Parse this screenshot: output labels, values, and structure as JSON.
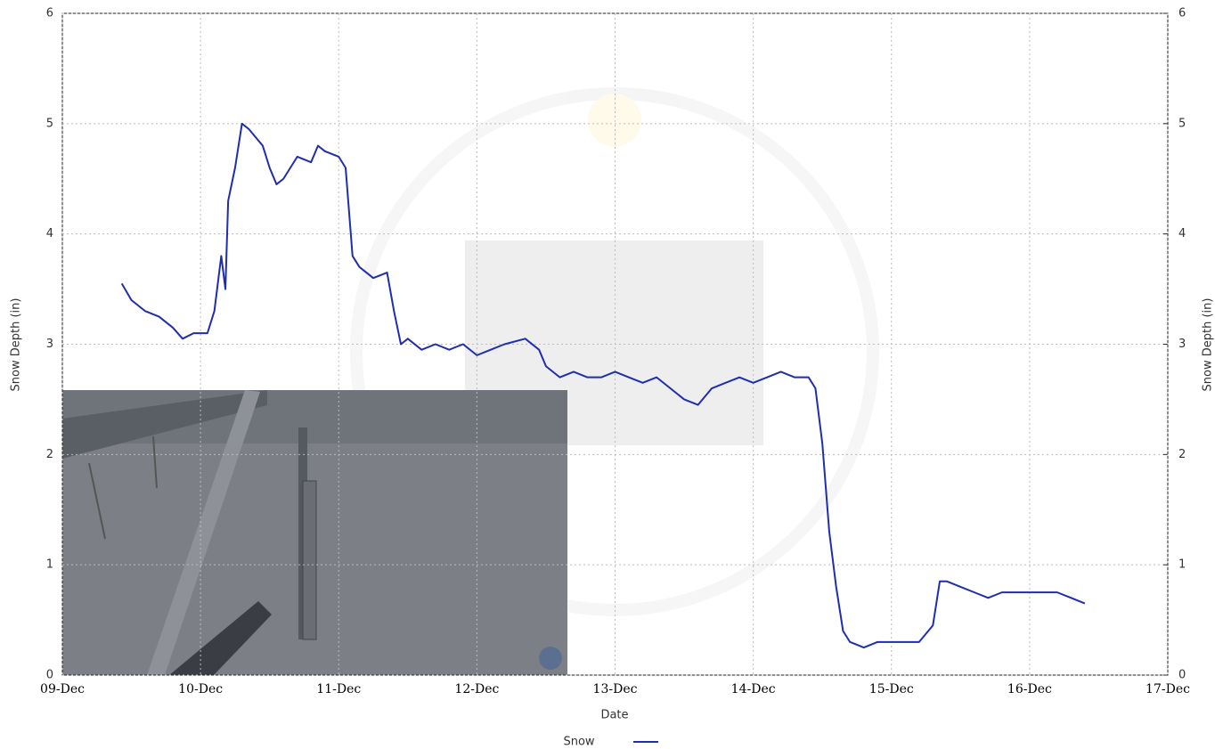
{
  "chart_data": {
    "type": "line",
    "xlabel": "Date",
    "ylabel": "Snow Depth (in)",
    "y2label": "Snow Depth (in)",
    "xlim": [
      9,
      17
    ],
    "xticks": [
      {
        "value": 9,
        "label": "09-Dec"
      },
      {
        "value": 10,
        "label": "10-Dec"
      },
      {
        "value": 11,
        "label": "11-Dec"
      },
      {
        "value": 12,
        "label": "12-Dec"
      },
      {
        "value": 13,
        "label": "13-Dec"
      },
      {
        "value": 14,
        "label": "14-Dec"
      },
      {
        "value": 15,
        "label": "15-Dec"
      },
      {
        "value": 16,
        "label": "16-Dec"
      },
      {
        "value": 17,
        "label": "17-Dec"
      }
    ],
    "ylim": [
      0,
      6
    ],
    "yticks": [
      0,
      1,
      2,
      3,
      4,
      5,
      6
    ],
    "y2lim": [
      0,
      6
    ],
    "y2ticks": [
      0,
      1,
      2,
      3,
      4,
      5,
      6
    ],
    "grid": true,
    "legend": "bottom",
    "x": [
      9.43,
      9.5,
      9.6,
      9.7,
      9.8,
      9.87,
      9.95,
      10.05,
      10.1,
      10.15,
      10.18,
      10.2,
      10.25,
      10.3,
      10.35,
      10.45,
      10.5,
      10.55,
      10.6,
      10.65,
      10.7,
      10.8,
      10.85,
      10.9,
      11.0,
      11.05,
      11.1,
      11.15,
      11.25,
      11.35,
      11.4,
      11.45,
      11.5,
      11.6,
      11.7,
      11.8,
      11.9,
      12.0,
      12.1,
      12.2,
      12.35,
      12.45,
      12.5,
      12.6,
      12.7,
      12.8,
      12.9,
      13.0,
      13.1,
      13.2,
      13.3,
      13.4,
      13.5,
      13.6,
      13.7,
      13.8,
      13.9,
      14.0,
      14.1,
      14.2,
      14.3,
      14.4,
      14.45,
      14.5,
      14.55,
      14.6,
      14.65,
      14.7,
      14.8,
      14.9,
      15.0,
      15.1,
      15.2,
      15.3,
      15.35,
      15.4,
      15.5,
      15.6,
      15.7,
      15.8,
      15.9,
      16.0,
      16.1,
      16.2,
      16.3,
      16.4
    ],
    "series": [
      {
        "name": "Snow",
        "color": "#1f2db0",
        "values": [
          3.55,
          3.4,
          3.3,
          3.25,
          3.15,
          3.05,
          3.1,
          3.1,
          3.3,
          3.8,
          3.5,
          4.3,
          4.6,
          5.0,
          4.95,
          4.8,
          4.6,
          4.45,
          4.5,
          4.6,
          4.7,
          4.65,
          4.8,
          4.75,
          4.7,
          4.6,
          3.8,
          3.7,
          3.6,
          3.65,
          3.3,
          3.0,
          3.05,
          2.95,
          3.0,
          2.95,
          3.0,
          2.9,
          2.95,
          3.0,
          3.05,
          2.95,
          2.8,
          2.7,
          2.75,
          2.7,
          2.7,
          2.75,
          2.7,
          2.65,
          2.7,
          2.6,
          2.5,
          2.45,
          2.6,
          2.65,
          2.7,
          2.65,
          2.7,
          2.75,
          2.7,
          2.7,
          2.6,
          2.1,
          1.3,
          0.8,
          0.4,
          0.3,
          0.25,
          0.3,
          0.3,
          0.3,
          0.3,
          0.45,
          0.85,
          0.85,
          0.8,
          0.75,
          0.7,
          0.75,
          0.75,
          0.75,
          0.75,
          0.75,
          0.7,
          0.65
        ]
      }
    ]
  }
}
